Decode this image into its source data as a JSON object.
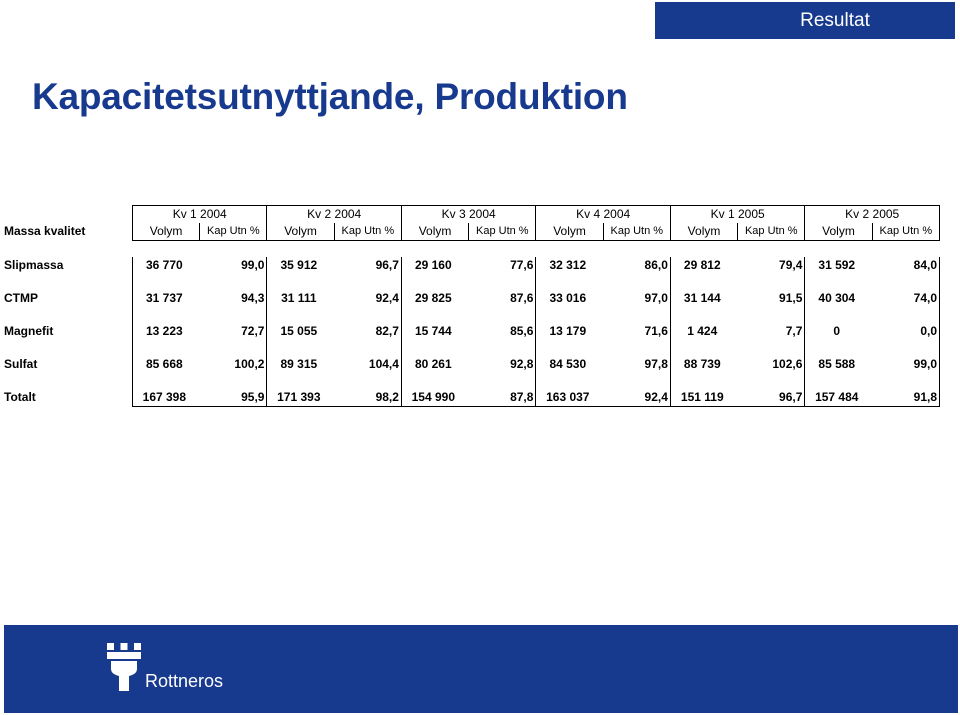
{
  "header": {
    "tab_label": "Resultat"
  },
  "page": {
    "title": "Kapacitetsutnyttjande, Produktion"
  },
  "table": {
    "corner_label": "Massa kvalitet",
    "quarters": [
      "Kv 1 2004",
      "Kv 2 2004",
      "Kv 3 2004",
      "Kv 4 2004",
      "Kv 1 2005",
      "Kv 2 2005"
    ],
    "col_volym": "Volym",
    "col_kap": "Kap Utn %",
    "rows": [
      {
        "label": "Slipmassa",
        "cells": [
          [
            "36 770",
            "99,0"
          ],
          [
            "35 912",
            "96,7"
          ],
          [
            "29 160",
            "77,6"
          ],
          [
            "32 312",
            "86,0"
          ],
          [
            "29 812",
            "79,4"
          ],
          [
            "31 592",
            "84,0"
          ]
        ]
      },
      {
        "label": "CTMP",
        "cells": [
          [
            "31 737",
            "94,3"
          ],
          [
            "31 111",
            "92,4"
          ],
          [
            "29 825",
            "87,6"
          ],
          [
            "33 016",
            "97,0"
          ],
          [
            "31 144",
            "91,5"
          ],
          [
            "40 304",
            "74,0"
          ]
        ]
      },
      {
        "label": "Magnefit",
        "cells": [
          [
            "13 223",
            "72,7"
          ],
          [
            "15 055",
            "82,7"
          ],
          [
            "15 744",
            "85,6"
          ],
          [
            "13 179",
            "71,6"
          ],
          [
            "1 424",
            "7,7"
          ],
          [
            "0",
            "0,0"
          ]
        ]
      },
      {
        "label": "Sulfat",
        "cells": [
          [
            "85 668",
            "100,2"
          ],
          [
            "89 315",
            "104,4"
          ],
          [
            "80 261",
            "92,8"
          ],
          [
            "84 530",
            "97,8"
          ],
          [
            "88 739",
            "102,6"
          ],
          [
            "85 588",
            "99,0"
          ]
        ]
      },
      {
        "label": "Totalt",
        "cells": [
          [
            "167 398",
            "95,9"
          ],
          [
            "171 393",
            "98,2"
          ],
          [
            "154 990",
            "87,8"
          ],
          [
            "163 037",
            "92,4"
          ],
          [
            "151 119",
            "96,7"
          ],
          [
            "157 484",
            "91,8"
          ]
        ]
      }
    ]
  },
  "footer": {
    "brand": "Rottneros",
    "logo_icon": "castle-icon"
  },
  "colors": {
    "brand_blue": "#17398e"
  }
}
